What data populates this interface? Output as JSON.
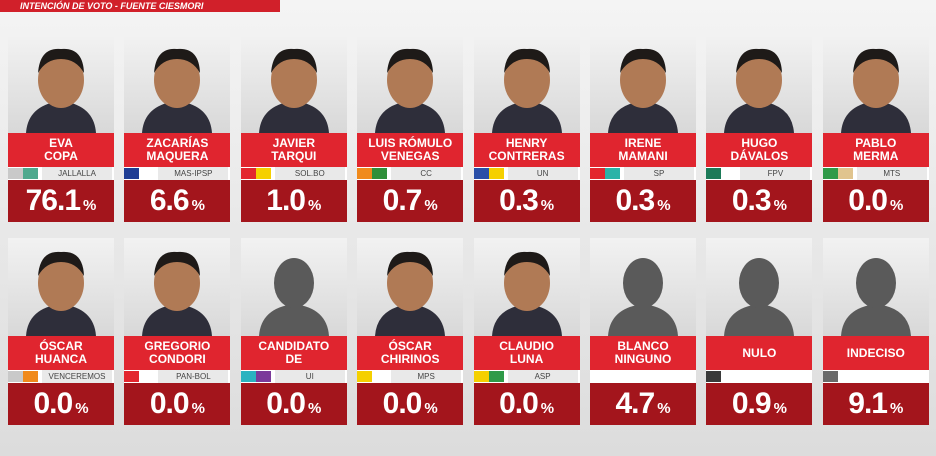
{
  "header": {
    "title": "INTENCIÓN DE VOTO - FUENTE CIESMORI"
  },
  "percent_sign": "%",
  "cards": [
    {
      "name": [
        "EVA",
        "COPA"
      ],
      "party": "JALLALLA",
      "colors": [
        "#c9c9c9",
        "#4fa98e"
      ],
      "value": "76.1",
      "photo": true
    },
    {
      "name": [
        "ZACARÍAS",
        "MAQUERA"
      ],
      "party": "MAS-IPSP",
      "colors": [
        "#1f3d94"
      ],
      "value": "6.6",
      "photo": true
    },
    {
      "name": [
        "JAVIER",
        "TARQUI"
      ],
      "party": "SOL.BO",
      "colors": [
        "#e3262e",
        "#f5d000"
      ],
      "value": "1.0",
      "photo": true
    },
    {
      "name": [
        "LUIS RÓMULO",
        "VENEGAS"
      ],
      "party": "CC",
      "colors": [
        "#f08a1c",
        "#2f8f3a"
      ],
      "value": "0.7",
      "photo": true
    },
    {
      "name": [
        "HENRY",
        "CONTRERAS"
      ],
      "party": "UN",
      "colors": [
        "#2a4fa8",
        "#f5d000"
      ],
      "value": "0.3",
      "photo": true
    },
    {
      "name": [
        "IRENE",
        "MAMANI"
      ],
      "party": "SP",
      "colors": [
        "#e3262e",
        "#2bb3a8"
      ],
      "value": "0.3",
      "photo": true
    },
    {
      "name": [
        "HUGO",
        "DÁVALOS"
      ],
      "party": "FPV",
      "colors": [
        "#1c7a58"
      ],
      "value": "0.3",
      "photo": true
    },
    {
      "name": [
        "PABLO",
        "MERMA"
      ],
      "party": "MTS",
      "colors": [
        "#2f9a48",
        "#e0c48e"
      ],
      "value": "0.0",
      "photo": true
    },
    {
      "name": [
        "ÓSCAR",
        "HUANCA"
      ],
      "party": "VENCEREMOS",
      "colors": [
        "#c9c9c9",
        "#f08a1c"
      ],
      "value": "0.0",
      "photo": true
    },
    {
      "name": [
        "GREGORIO",
        "CONDORI"
      ],
      "party": "PAN-BOL",
      "colors": [
        "#e3262e"
      ],
      "value": "0.0",
      "photo": true
    },
    {
      "name": [
        "CANDIDATO",
        "DE"
      ],
      "party": "UI",
      "colors": [
        "#2bb3c0",
        "#7b3a9a"
      ],
      "value": "0.0",
      "photo": false
    },
    {
      "name": [
        "ÓSCAR",
        "CHIRINOS"
      ],
      "party": "MPS",
      "colors": [
        "#f5d000"
      ],
      "value": "0.0",
      "photo": true
    },
    {
      "name": [
        "CLAUDIO",
        "LUNA"
      ],
      "party": "ASP",
      "colors": [
        "#f5d000",
        "#2f9a48"
      ],
      "value": "0.0",
      "photo": true
    },
    {
      "name": [
        "BLANCO",
        "NINGUNO"
      ],
      "party": null,
      "colors": [],
      "value": "4.7",
      "photo": false
    },
    {
      "name": [
        "NULO"
      ],
      "party": null,
      "colors": [
        "#3a3a3a"
      ],
      "value": "0.9",
      "photo": false
    },
    {
      "name": [
        "INDECISO"
      ],
      "party": null,
      "colors": [
        "#6a6a6a"
      ],
      "value": "9.1",
      "photo": false
    }
  ]
}
